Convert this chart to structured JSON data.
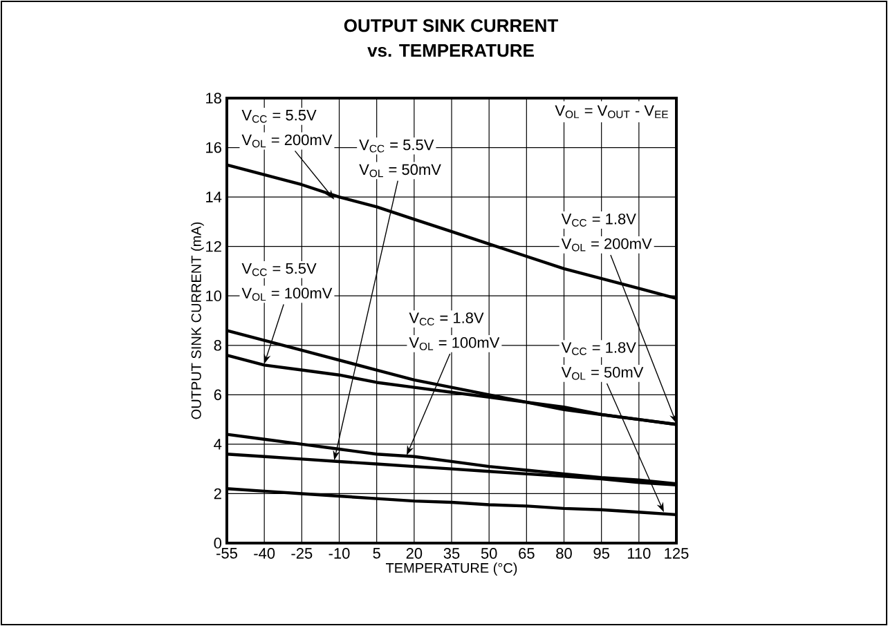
{
  "chart_data": {
    "type": "line",
    "title": "OUTPUT SINK CURRENT",
    "subtitle": "vs. TEMPERATURE",
    "xlabel": "TEMPERATURE (°C)",
    "ylabel": "OUTPUT SINK CURRENT (mA)",
    "x": [
      -55,
      -40,
      -25,
      -10,
      5,
      20,
      35,
      50,
      65,
      80,
      95,
      110,
      125
    ],
    "series": [
      {
        "color": "#000000",
        "values": [
          15.3,
          14.9,
          14.5,
          14.0,
          13.6,
          13.1,
          12.6,
          12.1,
          11.6,
          11.1,
          10.7,
          10.3,
          9.9
        ]
      },
      {
        "color": "#000000",
        "values": [
          8.6,
          8.2,
          7.8,
          7.4,
          7.0,
          6.6,
          6.3,
          6.0,
          5.7,
          5.5,
          5.2,
          5.0,
          4.8
        ]
      },
      {
        "color": "#000000",
        "values": [
          7.6,
          7.2,
          7.0,
          6.8,
          6.5,
          6.3,
          6.1,
          5.9,
          5.7,
          5.4,
          5.2,
          5.0,
          4.8
        ]
      },
      {
        "color": "#000000",
        "values": [
          4.4,
          4.2,
          4.0,
          3.8,
          3.6,
          3.5,
          3.3,
          3.1,
          2.95,
          2.8,
          2.65,
          2.55,
          2.4
        ]
      },
      {
        "color": "#000000",
        "values": [
          3.6,
          3.5,
          3.4,
          3.3,
          3.2,
          3.1,
          3.0,
          2.9,
          2.8,
          2.7,
          2.6,
          2.45,
          2.35
        ]
      },
      {
        "color": "#000000",
        "values": [
          2.2,
          2.1,
          2.0,
          1.9,
          1.8,
          1.7,
          1.65,
          1.55,
          1.5,
          1.4,
          1.35,
          1.25,
          1.15
        ]
      }
    ],
    "xlim": [
      -55,
      125
    ],
    "xticks": [
      -55,
      -40,
      -25,
      -10,
      5,
      20,
      35,
      50,
      65,
      80,
      95,
      110,
      125
    ],
    "ylim": [
      0,
      18
    ],
    "yticks": [
      0,
      2,
      4,
      6,
      8,
      10,
      12,
      14,
      16,
      18
    ],
    "grid": true,
    "marker": "none",
    "line_style": "solid",
    "annotations": [
      "V$_{CC}$ = 5.5V",
      {
        "text": "V$_{OL}$ = 200mV",
        "x": -12,
        "y": 13.9
      },
      "V$_{CC}$ = 5.5V",
      {
        "text": "V$_{OL}$ = 50mV",
        "x": -12,
        "y": 3.35
      },
      "V$_{CC}$ = 1.8V",
      {
        "text": "V$_{OL}$ = 200mV",
        "x": 125,
        "y": 4.85
      },
      "V$_{CC}$ = 5.5V",
      {
        "text": "V$_{OL}$ = 100mV",
        "x": -40,
        "y": 7.25
      },
      "V$_{CC}$ = 1.8V",
      {
        "text": "V$_{OL}$ = 100mV",
        "x": 17,
        "y": 3.55
      },
      "V$_{CC}$ = 1.8V",
      {
        "text": "V$_{OL}$ = 50mV",
        "x": 120,
        "y": 1.25
      },
      "V$_{OL}$ = V$_{OUT}$ - V$_{EE}$"
    ]
  }
}
